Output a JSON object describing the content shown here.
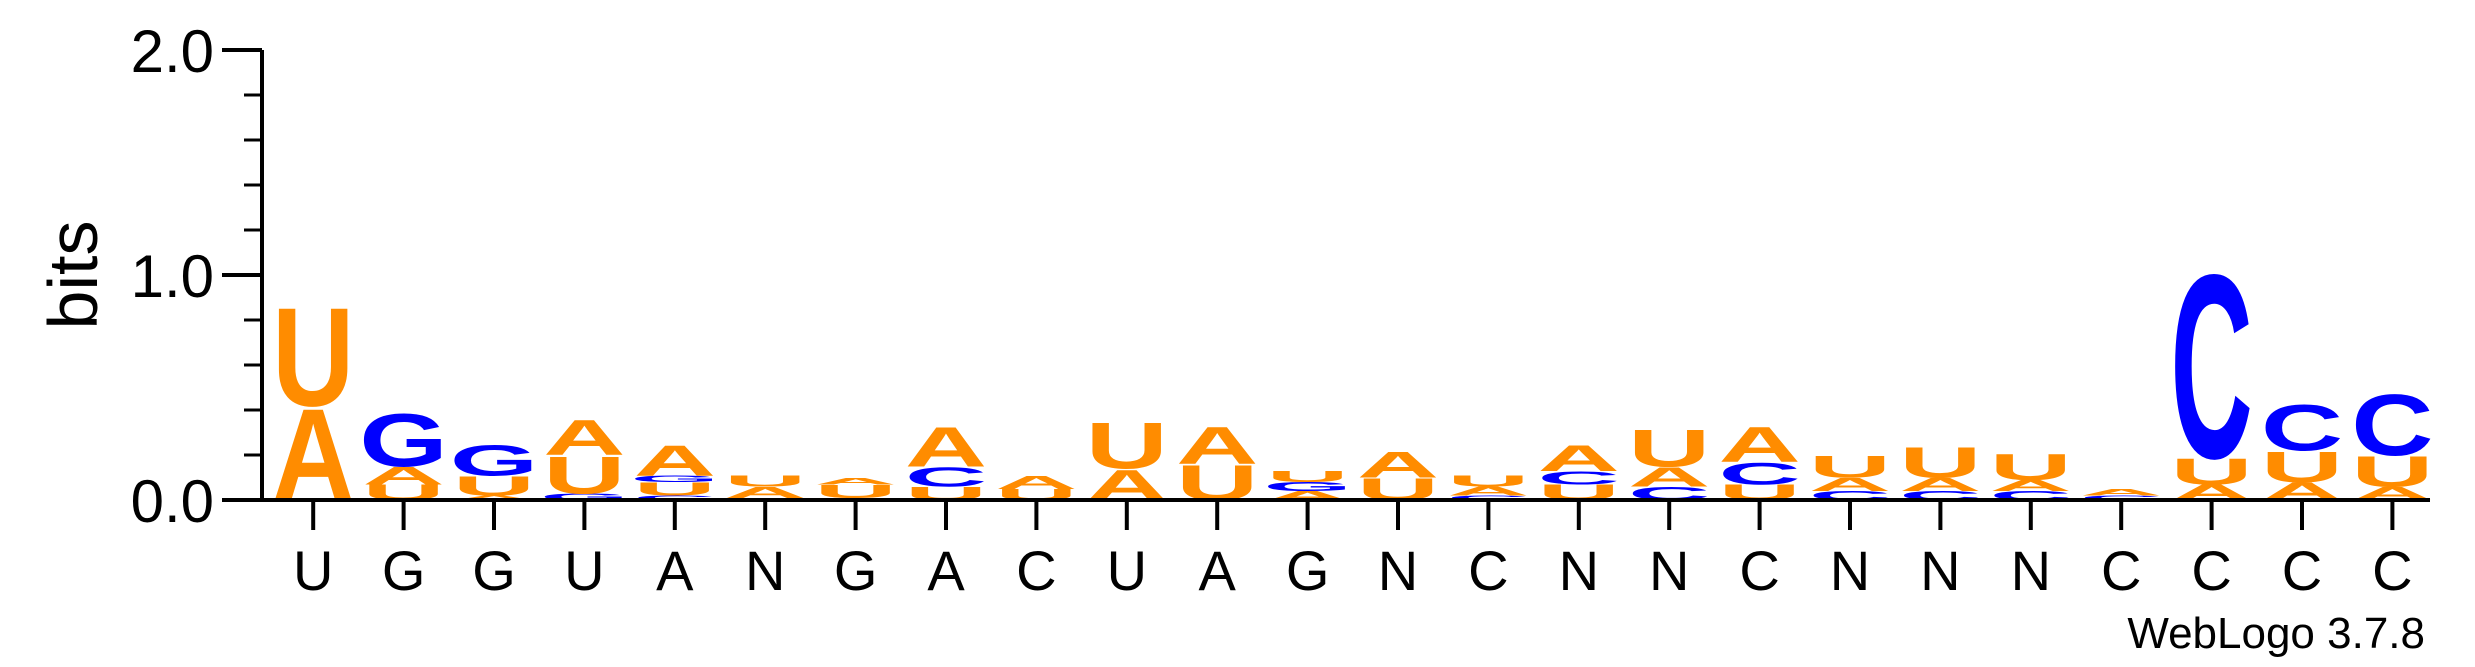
{
  "chart_data": {
    "type": "sequence-logo",
    "ylabel": "bits",
    "ylim": [
      0,
      2.0
    ],
    "yticks": [
      {
        "value": 0,
        "label": "0.0"
      },
      {
        "value": 1,
        "label": "1.0"
      },
      {
        "value": 2,
        "label": "2.0"
      }
    ],
    "colors": {
      "A": "#ff8c00",
      "U": "#ff8c00",
      "G": "#0000ff",
      "C": "#0000ff",
      "axis": "#000000"
    },
    "positions": [
      {
        "consensus": "U",
        "stack": [
          {
            "letter": "A",
            "bits": 0.42
          },
          {
            "letter": "U",
            "bits": 0.45
          }
        ]
      },
      {
        "consensus": "G",
        "stack": [
          {
            "letter": "U",
            "bits": 0.07
          },
          {
            "letter": "A",
            "bits": 0.08
          },
          {
            "letter": "G",
            "bits": 0.24
          }
        ]
      },
      {
        "consensus": "G",
        "stack": [
          {
            "letter": "A",
            "bits": 0.02
          },
          {
            "letter": "U",
            "bits": 0.09
          },
          {
            "letter": "G",
            "bits": 0.14
          }
        ]
      },
      {
        "consensus": "U",
        "stack": [
          {
            "letter": "G",
            "bits": 0.03
          },
          {
            "letter": "U",
            "bits": 0.17
          },
          {
            "letter": "A",
            "bits": 0.16
          }
        ]
      },
      {
        "consensus": "A",
        "stack": [
          {
            "letter": "C",
            "bits": 0.02
          },
          {
            "letter": "U",
            "bits": 0.06
          },
          {
            "letter": "G",
            "bits": 0.03
          },
          {
            "letter": "A",
            "bits": 0.14
          }
        ]
      },
      {
        "consensus": "N",
        "stack": [
          {
            "letter": "C",
            "bits": 0.01
          },
          {
            "letter": "A",
            "bits": 0.05
          },
          {
            "letter": "U",
            "bits": 0.05
          }
        ]
      },
      {
        "consensus": "G",
        "stack": [
          {
            "letter": "C",
            "bits": 0.01
          },
          {
            "letter": "U",
            "bits": 0.06
          },
          {
            "letter": "A",
            "bits": 0.03
          }
        ]
      },
      {
        "consensus": "A",
        "stack": [
          {
            "letter": "U",
            "bits": 0.06
          },
          {
            "letter": "C",
            "bits": 0.09
          },
          {
            "letter": "A",
            "bits": 0.18
          }
        ]
      },
      {
        "consensus": "C",
        "stack": [
          {
            "letter": "U",
            "bits": 0.05
          },
          {
            "letter": "A",
            "bits": 0.06
          }
        ]
      },
      {
        "consensus": "U",
        "stack": [
          {
            "letter": "A",
            "bits": 0.14
          },
          {
            "letter": "U",
            "bits": 0.21
          }
        ]
      },
      {
        "consensus": "A",
        "stack": [
          {
            "letter": "U",
            "bits": 0.16
          },
          {
            "letter": "A",
            "bits": 0.17
          }
        ]
      },
      {
        "consensus": "G",
        "stack": [
          {
            "letter": "A",
            "bits": 0.04
          },
          {
            "letter": "G",
            "bits": 0.04
          },
          {
            "letter": "U",
            "bits": 0.05
          }
        ]
      },
      {
        "consensus": "N",
        "stack": [
          {
            "letter": "U",
            "bits": 0.1
          },
          {
            "letter": "A",
            "bits": 0.12
          }
        ]
      },
      {
        "consensus": "C",
        "stack": [
          {
            "letter": "C",
            "bits": 0.02
          },
          {
            "letter": "A",
            "bits": 0.04
          },
          {
            "letter": "U",
            "bits": 0.05
          }
        ]
      },
      {
        "consensus": "N",
        "stack": [
          {
            "letter": "U",
            "bits": 0.07
          },
          {
            "letter": "C",
            "bits": 0.06
          },
          {
            "letter": "A",
            "bits": 0.12
          }
        ]
      },
      {
        "consensus": "N",
        "stack": [
          {
            "letter": "C",
            "bits": 0.06
          },
          {
            "letter": "A",
            "bits": 0.09
          },
          {
            "letter": "U",
            "bits": 0.17
          }
        ]
      },
      {
        "consensus": "C",
        "stack": [
          {
            "letter": "U",
            "bits": 0.07
          },
          {
            "letter": "C",
            "bits": 0.1
          },
          {
            "letter": "A",
            "bits": 0.16
          }
        ]
      },
      {
        "consensus": "N",
        "stack": [
          {
            "letter": "C",
            "bits": 0.04
          },
          {
            "letter": "A",
            "bits": 0.06
          },
          {
            "letter": "U",
            "bits": 0.1
          }
        ]
      },
      {
        "consensus": "N",
        "stack": [
          {
            "letter": "C",
            "bits": 0.04
          },
          {
            "letter": "A",
            "bits": 0.06
          },
          {
            "letter": "U",
            "bits": 0.14
          }
        ]
      },
      {
        "consensus": "N",
        "stack": [
          {
            "letter": "C",
            "bits": 0.04
          },
          {
            "letter": "A",
            "bits": 0.05
          },
          {
            "letter": "U",
            "bits": 0.12
          }
        ]
      },
      {
        "consensus": "C",
        "stack": [
          {
            "letter": "C",
            "bits": 0.02
          },
          {
            "letter": "A",
            "bits": 0.03
          }
        ]
      },
      {
        "consensus": "C",
        "stack": [
          {
            "letter": "A",
            "bits": 0.07
          },
          {
            "letter": "U",
            "bits": 0.12
          },
          {
            "letter": "C",
            "bits": 0.84
          }
        ]
      },
      {
        "consensus": "C",
        "stack": [
          {
            "letter": "A",
            "bits": 0.08
          },
          {
            "letter": "U",
            "bits": 0.14
          },
          {
            "letter": "C",
            "bits": 0.21
          }
        ]
      },
      {
        "consensus": "C",
        "stack": [
          {
            "letter": "A",
            "bits": 0.06
          },
          {
            "letter": "U",
            "bits": 0.14
          },
          {
            "letter": "C",
            "bits": 0.28
          }
        ]
      }
    ]
  },
  "credit": "WebLogo 3.7.8"
}
